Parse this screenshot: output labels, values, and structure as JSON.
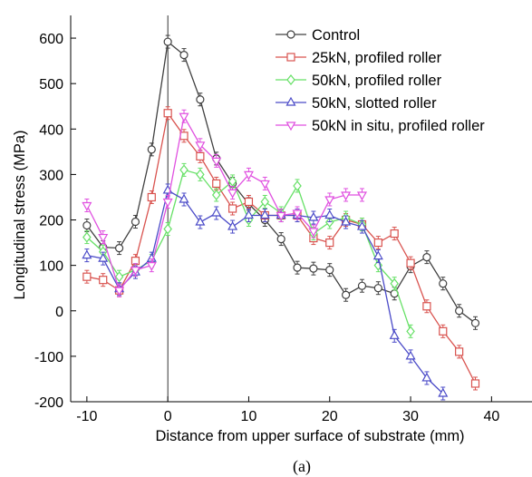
{
  "chart_data": {
    "type": "line",
    "title": "",
    "xlabel": "Distance from upper surface of substrate (mm)",
    "ylabel": "Longitudinal stress (MPa)",
    "xlim": [
      -12,
      45
    ],
    "ylim": [
      -200,
      650
    ],
    "xticks": [
      -10,
      0,
      10,
      20,
      30,
      40
    ],
    "yticks": [
      -200,
      -100,
      0,
      100,
      200,
      300,
      400,
      500,
      600
    ],
    "xtick_labels": [
      "-10",
      "0",
      "10",
      "20",
      "30",
      "40"
    ],
    "ytick_labels": [
      "-200",
      "-100",
      "0",
      "100",
      "200",
      "300",
      "400",
      "500",
      "600"
    ],
    "grid": false,
    "legend_position": "top-right",
    "vertical_reference_line_x": 0,
    "series": [
      {
        "name": "Control",
        "color": "#404040",
        "marker": "circle",
        "x": [
          -10,
          -8,
          -6,
          -4,
          -2,
          0,
          2,
          4,
          6,
          8,
          10,
          12,
          14,
          16,
          18,
          20,
          22,
          24,
          26,
          28,
          30,
          32,
          34,
          36,
          38
        ],
        "y": [
          188,
          140,
          138,
          196,
          355,
          592,
          563,
          465,
          335,
          280,
          235,
          200,
          158,
          95,
          93,
          90,
          35,
          55,
          50,
          38,
          98,
          118,
          60,
          0,
          -27
        ]
      },
      {
        "name": "25kN, profiled roller",
        "color": "#d9534f",
        "marker": "square",
        "x": [
          -10,
          -8,
          -6,
          -4,
          -2,
          0,
          2,
          4,
          6,
          8,
          10,
          12,
          14,
          16,
          18,
          20,
          22,
          24,
          26,
          28,
          30,
          32,
          34,
          36,
          38
        ],
        "y": [
          75,
          68,
          45,
          110,
          250,
          435,
          385,
          340,
          280,
          225,
          240,
          210,
          210,
          210,
          160,
          150,
          200,
          190,
          150,
          170,
          105,
          10,
          -45,
          -90,
          -160
        ]
      },
      {
        "name": "50kN, profiled roller",
        "color": "#66e066",
        "marker": "diamond",
        "x": [
          -10,
          -8,
          -6,
          -4,
          -2,
          0,
          2,
          4,
          6,
          8,
          10,
          12,
          14,
          16,
          18,
          20,
          22,
          24,
          26,
          28,
          30
        ],
        "y": [
          162,
          130,
          75,
          90,
          110,
          180,
          310,
          300,
          255,
          285,
          200,
          240,
          215,
          275,
          170,
          195,
          205,
          190,
          100,
          60,
          -45
        ]
      },
      {
        "name": "50kN, slotted roller",
        "color": "#4b4bc8",
        "marker": "triangle-up",
        "x": [
          -10,
          -8,
          -6,
          -4,
          -2,
          0,
          2,
          4,
          6,
          8,
          10,
          12,
          14,
          16,
          18,
          20,
          22,
          24,
          26,
          28,
          30,
          32,
          34
        ],
        "y": [
          122,
          115,
          48,
          85,
          115,
          265,
          245,
          195,
          215,
          185,
          210,
          210,
          210,
          210,
          205,
          210,
          195,
          185,
          120,
          -55,
          -100,
          -148,
          -182
        ]
      },
      {
        "name": "50kN in situ, profiled roller",
        "color": "#e050e0",
        "marker": "triangle-down",
        "x": [
          -10,
          -8,
          -6,
          -4,
          -2,
          0,
          2,
          4,
          6,
          8,
          10,
          12,
          14,
          16,
          18,
          20,
          22,
          24
        ],
        "y": [
          232,
          162,
          45,
          90,
          100,
          240,
          428,
          365,
          330,
          260,
          300,
          280,
          210,
          215,
          175,
          245,
          255,
          255
        ]
      }
    ]
  },
  "caption": "(a)"
}
